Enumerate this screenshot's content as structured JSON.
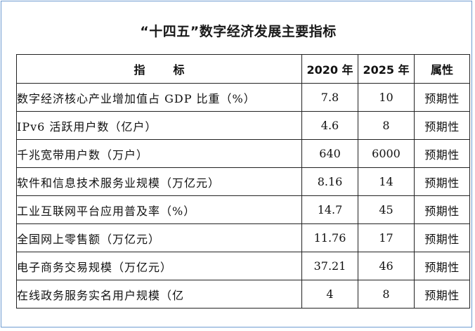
{
  "title": "“十四五”数字经济发展主要指标",
  "table": {
    "headers": {
      "indicator_part1": "指",
      "indicator_part2": "标",
      "year_2020": "2020 年",
      "year_2025": "2025 年",
      "attribute": "属性"
    },
    "rows": [
      {
        "name": "数字经济核心产业增加值占 GDP 比重（%）",
        "v2020": "7.8",
        "v2025": "10",
        "attr": "预期性"
      },
      {
        "name": "IPv6 活跃用户数（亿户）",
        "v2020": "4.6",
        "v2025": "8",
        "attr": "预期性"
      },
      {
        "name": "千兆宽带用户数（万户）",
        "v2020": "640",
        "v2025": "6000",
        "attr": "预期性"
      },
      {
        "name": "软件和信息技术服务业规模（万亿元）",
        "v2020": "8.16",
        "v2025": "14",
        "attr": "预期性"
      },
      {
        "name": "工业互联网平台应用普及率（%）",
        "v2020": "14.7",
        "v2025": "45",
        "attr": "预期性"
      },
      {
        "name": "全国网上零售额（万亿元）",
        "v2020": "11.76",
        "v2025": "17",
        "attr": "预期性"
      },
      {
        "name": "电子商务交易规模（万亿元）",
        "v2020": "37.21",
        "v2025": "46",
        "attr": "预期性"
      },
      {
        "name": "在线政务服务实名用户规模（亿",
        "v2020": "4",
        "v2025": "8",
        "attr": "预期性"
      }
    ]
  }
}
